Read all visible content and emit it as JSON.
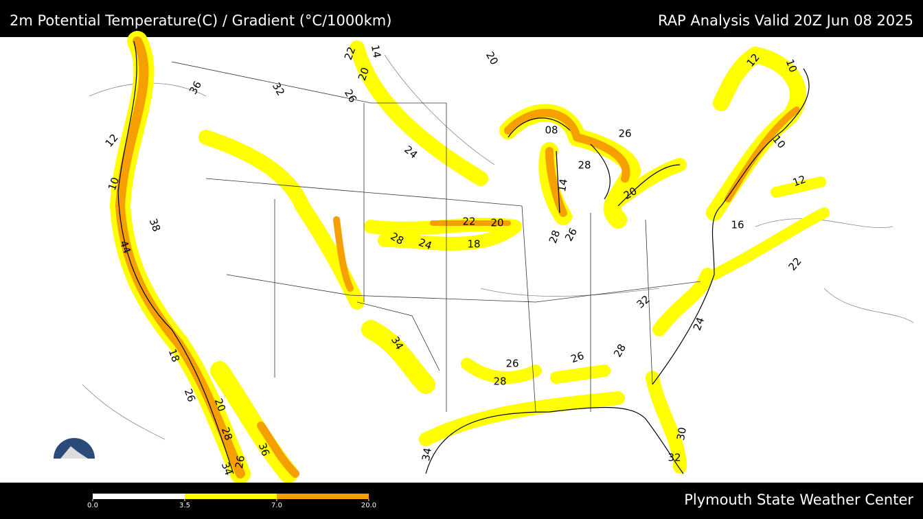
{
  "header": {
    "title": "2m Potential Temperature(C) / Gradient (°C/1000km)",
    "valid": "RAP Analysis Valid 20Z Jun 08 2025"
  },
  "footer": {
    "credit": "Plymouth State Weather Center"
  },
  "colorbar": {
    "ticks": [
      {
        "value": 0,
        "label": "0.0"
      },
      {
        "value": 3.5,
        "label": "3.5"
      },
      {
        "value": 7,
        "label": "7.0"
      },
      {
        "value": 20,
        "label": "20.0"
      }
    ],
    "colors": [
      "#ffffff",
      "#ffff00",
      "#f5a000"
    ]
  },
  "contour_labels": [
    "36",
    "32",
    "22",
    "20",
    "14",
    "26",
    "20",
    "12",
    "10",
    "38",
    "44",
    "24",
    "22",
    "20",
    "28",
    "24",
    "18",
    "28",
    "26",
    "08",
    "26",
    "28",
    "14",
    "20",
    "12",
    "16",
    "22",
    "32",
    "24",
    "34",
    "26",
    "28",
    "26",
    "28",
    "18",
    "26",
    "20",
    "28",
    "36",
    "34",
    "26",
    "32",
    "30",
    "34",
    "10",
    "12",
    "10"
  ]
}
